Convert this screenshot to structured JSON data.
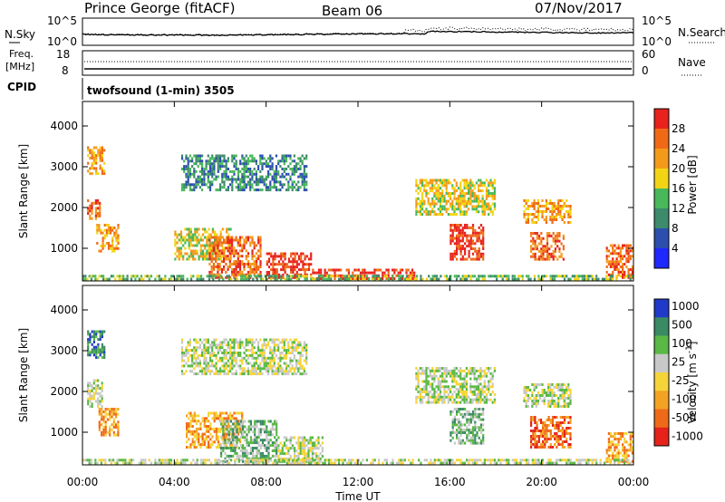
{
  "header": {
    "site": "Prince George (fitACF)",
    "beam": "Beam 06",
    "date": "07/Nov/2017"
  },
  "noise_panel": {
    "left_label": "N.Sky",
    "right_label": "N.Search",
    "left_ticks": [
      "10^5",
      "10^0"
    ],
    "right_ticks": [
      "10^5",
      "10^0"
    ]
  },
  "freq_panel": {
    "left_label_line1": "Freq.",
    "left_label_line2": "[MHz]",
    "right_label": "Nave",
    "left_ticks": [
      "18",
      "8"
    ],
    "right_ticks": [
      "60",
      "0"
    ]
  },
  "cpid": {
    "label": "CPID",
    "value": "twofsound (1-min) 3505"
  },
  "time_axis": {
    "label": "Time UT",
    "ticks": [
      "00:00",
      "04:00",
      "08:00",
      "12:00",
      "16:00",
      "20:00",
      "00:00"
    ]
  },
  "colors": {
    "power_scale": [
      "#1f28ff",
      "#2c4fae",
      "#3d8a6c",
      "#48b85a",
      "#f2d415",
      "#f39a1b",
      "#f06a16",
      "#e8221c"
    ],
    "velocity_scale": [
      "#2039c9",
      "#3a8a64",
      "#5ab845",
      "#c8c8c8",
      "#f5d43a",
      "#f3a224",
      "#ef6a18",
      "#e5231b"
    ],
    "ground_scatter": "#c0c0c0"
  },
  "chart_data": [
    {
      "type": "heatmap",
      "name": "Power",
      "ylabel": "Slant Range [km]",
      "yticks": [
        1000,
        2000,
        3000,
        4000
      ],
      "ylim": [
        200,
        4600
      ],
      "xlim_hours": [
        0,
        24
      ],
      "colorbar": {
        "label": "Power [dB]",
        "ticks": [
          4,
          8,
          12,
          16,
          20,
          24,
          28
        ],
        "range": [
          0,
          32
        ]
      },
      "patches": [
        {
          "t0": 0.2,
          "t1": 1.0,
          "r0": 2800,
          "r1": 3500,
          "level": 5
        },
        {
          "t0": 0.2,
          "t1": 0.8,
          "r0": 1700,
          "r1": 2200,
          "level": 6
        },
        {
          "t0": 0.6,
          "t1": 1.6,
          "r0": 900,
          "r1": 1600,
          "level": 5
        },
        {
          "t0": 4.3,
          "t1": 9.8,
          "r0": 2400,
          "r1": 3300,
          "level": 2
        },
        {
          "t0": 4.0,
          "t1": 6.5,
          "r0": 700,
          "r1": 1500,
          "level": 4
        },
        {
          "t0": 5.5,
          "t1": 7.8,
          "r0": 250,
          "r1": 1300,
          "level": 6
        },
        {
          "t0": 8.0,
          "t1": 10.0,
          "r0": 250,
          "r1": 900,
          "level": 7
        },
        {
          "t0": 10.0,
          "t1": 14.5,
          "r0": 220,
          "r1": 500,
          "level": 7
        },
        {
          "t0": 14.5,
          "t1": 18.0,
          "r0": 1800,
          "r1": 2700,
          "level": 4
        },
        {
          "t0": 16.0,
          "t1": 17.5,
          "r0": 700,
          "r1": 1600,
          "level": 7
        },
        {
          "t0": 19.2,
          "t1": 21.3,
          "r0": 1600,
          "r1": 2200,
          "level": 5
        },
        {
          "t0": 19.5,
          "t1": 21.0,
          "r0": 700,
          "r1": 1400,
          "level": 6
        },
        {
          "t0": 22.8,
          "t1": 24.0,
          "r0": 250,
          "r1": 1100,
          "level": 6
        },
        {
          "t0": 0.0,
          "t1": 24.0,
          "r0": 200,
          "r1": 350,
          "level": 3
        }
      ]
    },
    {
      "type": "heatmap",
      "name": "Velocity",
      "ylabel": "Slant Range [km]",
      "yticks": [
        1000,
        2000,
        3000,
        4000
      ],
      "ylim": [
        200,
        4600
      ],
      "xlim_hours": [
        0,
        24
      ],
      "colorbar": {
        "label": "Velocity [m s^-1]",
        "ticks": [
          "1000",
          "500",
          "100",
          "25",
          "-25",
          "-100",
          "-500",
          "-1000"
        ]
      },
      "patches": [
        {
          "t0": 0.2,
          "t1": 1.0,
          "r0": 2800,
          "r1": 3500,
          "level": 1
        },
        {
          "t0": 0.2,
          "t1": 0.9,
          "r0": 1600,
          "r1": 2300,
          "level": 3
        },
        {
          "t0": 0.7,
          "t1": 1.6,
          "r0": 900,
          "r1": 1600,
          "level": 5
        },
        {
          "t0": 4.3,
          "t1": 9.8,
          "r0": 2400,
          "r1": 3300,
          "level": 3
        },
        {
          "t0": 4.5,
          "t1": 7.0,
          "r0": 600,
          "r1": 1500,
          "level": 5
        },
        {
          "t0": 6.0,
          "t1": 8.5,
          "r0": 250,
          "r1": 1300,
          "level": 2
        },
        {
          "t0": 8.5,
          "t1": 10.5,
          "r0": 250,
          "r1": 900,
          "level": 3
        },
        {
          "t0": 14.5,
          "t1": 18.0,
          "r0": 1700,
          "r1": 2600,
          "level": 3
        },
        {
          "t0": 16.0,
          "t1": 17.5,
          "r0": 700,
          "r1": 1600,
          "level": 2
        },
        {
          "t0": 19.2,
          "t1": 21.3,
          "r0": 1600,
          "r1": 2200,
          "level": 3
        },
        {
          "t0": 19.5,
          "t1": 21.3,
          "r0": 600,
          "r1": 1400,
          "level": 6
        },
        {
          "t0": 22.8,
          "t1": 24.0,
          "r0": 250,
          "r1": 1000,
          "level": 5
        },
        {
          "t0": 0.0,
          "t1": 24.0,
          "r0": 200,
          "r1": 350,
          "level": 3
        }
      ]
    }
  ]
}
